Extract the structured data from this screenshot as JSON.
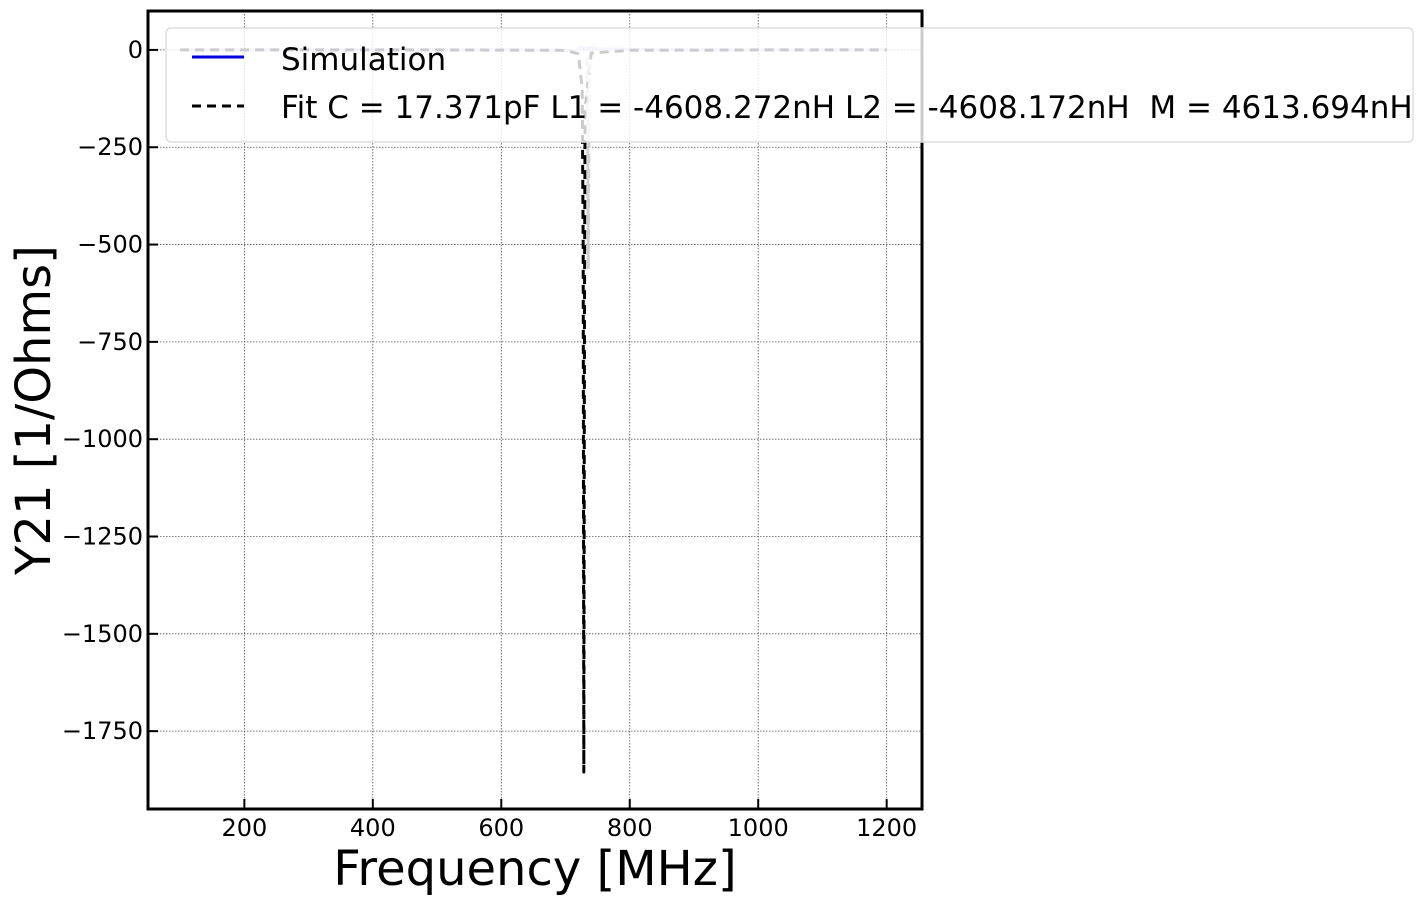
{
  "chart_data": {
    "type": "line",
    "title": "",
    "xlabel": "Frequency [MHz]",
    "ylabel": "Y21 [1/Ohms]",
    "xlim": [
      50,
      1255
    ],
    "ylim": [
      -1950,
      100
    ],
    "xticks": [
      200,
      400,
      600,
      800,
      1000,
      1200
    ],
    "xtick_labels": [
      "200",
      "400",
      "600",
      "800",
      "1000",
      "1200"
    ],
    "yticks": [
      0,
      -250,
      -500,
      -750,
      -1000,
      -1250,
      -1500,
      -1750
    ],
    "ytick_labels": [
      "0",
      "−250",
      "−500",
      "−750",
      "−1000",
      "−1250",
      "−1500",
      "−1750"
    ],
    "grid": true,
    "legend_position": "top-right",
    "series": [
      {
        "name": "Simulation",
        "color": "#c9c9f0",
        "legend_color": "#0000dd",
        "style": "solid",
        "x": [
          100,
          300,
          500,
          650,
          700,
          715,
          722,
          725,
          728,
          732,
          736,
          740,
          760,
          900,
          1100,
          1200
        ],
        "y": [
          0,
          0,
          0,
          0,
          -1,
          -3,
          6,
          8,
          5,
          3,
          5,
          6,
          2,
          0,
          0,
          0
        ]
      },
      {
        "name": "Fit C = 17.371pF L1 = -4608.272nH L2 = -4608.172nH  M = 4613.694nH",
        "color": "#000000",
        "style": "dashed",
        "x": [
          100,
          500,
          700,
          720,
          726,
          727.5,
          728.5,
          729.5,
          730.5,
          740,
          800,
          1000,
          1200
        ],
        "y": [
          0,
          0,
          -1,
          -10,
          -100,
          -500,
          -1855,
          -700,
          -150,
          -8,
          -1,
          0,
          0
        ]
      },
      {
        "name": "",
        "color": "#cfcfcf",
        "style": "dashed",
        "x": [
          733,
          734.5,
          735.5,
          736.5,
          738
        ],
        "y": [
          -20,
          -200,
          -560,
          -200,
          -20
        ]
      }
    ]
  }
}
